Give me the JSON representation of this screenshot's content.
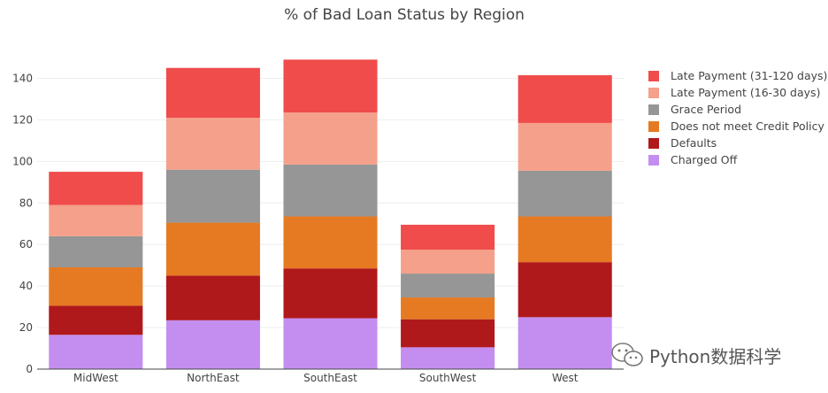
{
  "chart_data": {
    "type": "bar",
    "stacked": true,
    "title": "% of Bad Loan Status by Region",
    "categories": [
      "MidWest",
      "NorthEast",
      "SouthEast",
      "SouthWest",
      "West"
    ],
    "ylim": [
      0,
      150
    ],
    "yticks": [
      0,
      20,
      40,
      60,
      80,
      100,
      120,
      140
    ],
    "grid": true,
    "legend_position": "right",
    "series": [
      {
        "name": "Charged Off",
        "color": "#c38ef0",
        "values": [
          16.5,
          23.5,
          24.5,
          10.5,
          25
        ]
      },
      {
        "name": "Defaults",
        "color": "#b0191c",
        "values": [
          14,
          21.5,
          24,
          13.5,
          26.5
        ]
      },
      {
        "name": "Does not meet Credit Policy",
        "color": "#e67a22",
        "values": [
          18.5,
          25.5,
          25,
          10.5,
          22
        ]
      },
      {
        "name": "Grace Period",
        "color": "#969696",
        "values": [
          15,
          25.5,
          25,
          11.5,
          22
        ]
      },
      {
        "name": "Late Payment (16-30 days)",
        "color": "#f5a08a",
        "values": [
          15,
          25,
          25,
          11.5,
          23
        ]
      },
      {
        "name": "Late Payment (31-120 days)",
        "color": "#ef4c4b",
        "values": [
          16,
          24,
          25.5,
          12,
          23
        ]
      }
    ]
  },
  "watermark": {
    "text": "Python数据科学",
    "icon": "wechat-icon"
  }
}
